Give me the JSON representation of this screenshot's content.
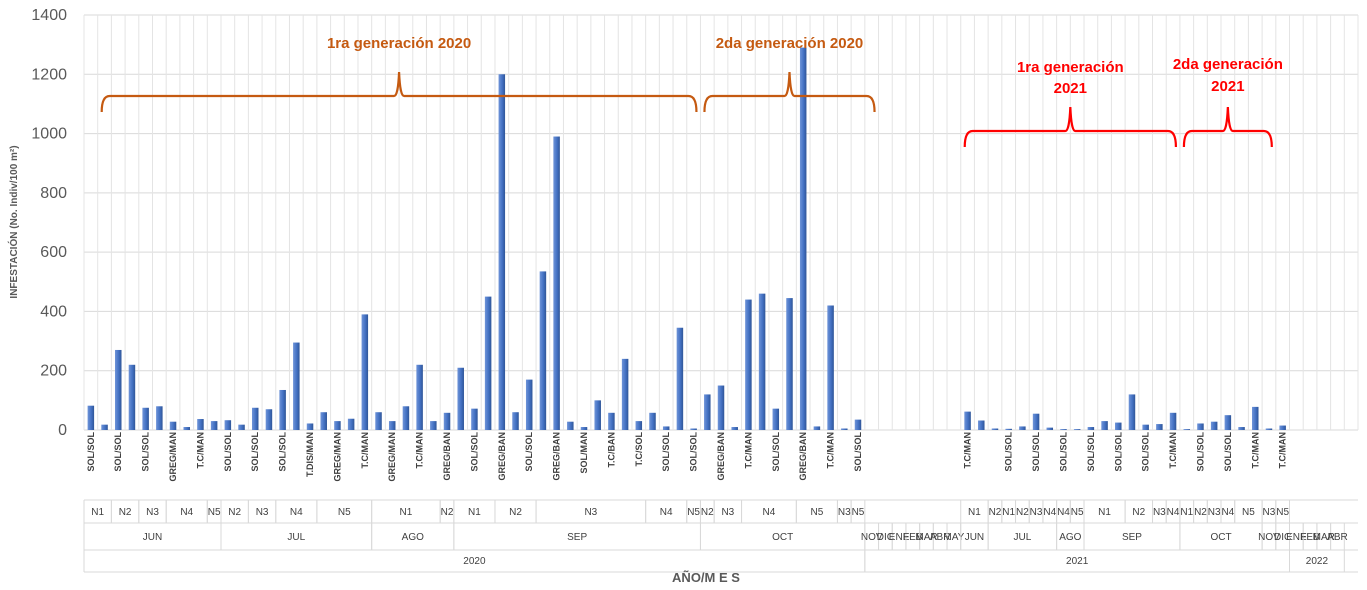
{
  "chart_data": {
    "type": "bar",
    "ylabel": "INFESTACIÓN (No. Indiv/100 m²)",
    "xlabel": "AÑO/M E S",
    "ylim": [
      0,
      1400
    ],
    "yticks": [
      0,
      200,
      400,
      600,
      800,
      1000,
      1200,
      1400
    ],
    "grid": true,
    "bar_color": "#4472c4",
    "values": [
      82,
      18,
      270,
      220,
      75,
      80,
      28,
      10,
      37,
      30,
      33,
      18,
      75,
      70,
      135,
      295,
      22,
      60,
      30,
      38,
      390,
      60,
      30,
      80,
      220,
      30,
      58,
      210,
      72,
      450,
      1200,
      60,
      170,
      535,
      990,
      28,
      10,
      100,
      58,
      240,
      30,
      58,
      12,
      345,
      5,
      120,
      150,
      10,
      440,
      460,
      72,
      445,
      1290,
      12,
      420,
      5,
      35,
      0,
      0,
      0,
      0,
      0,
      0,
      0,
      62,
      32,
      5,
      4,
      12,
      55,
      8,
      3,
      3,
      10,
      30,
      25,
      120,
      18,
      20,
      58,
      3,
      22,
      28,
      50,
      10,
      78,
      5,
      15,
      0,
      0,
      0,
      0,
      0
    ],
    "category_labels": [
      {
        "i": 0,
        "t": "SOL/SOL"
      },
      {
        "i": 2,
        "t": "SOL/SOL"
      },
      {
        "i": 4,
        "t": "SOL/SOL"
      },
      {
        "i": 6,
        "t": "GREG/MAN"
      },
      {
        "i": 8,
        "t": "T.C/MAN"
      },
      {
        "i": 10,
        "t": "SOL/SOL"
      },
      {
        "i": 12,
        "t": "SOL/SOL"
      },
      {
        "i": 14,
        "t": "SOL/SOL"
      },
      {
        "i": 16,
        "t": "T.DIS/MAN"
      },
      {
        "i": 18,
        "t": "GREG/MAN"
      },
      {
        "i": 20,
        "t": "T.C/MAN"
      },
      {
        "i": 22,
        "t": "GREG/MAN"
      },
      {
        "i": 24,
        "t": "T.C/MAN"
      },
      {
        "i": 26,
        "t": "GREG/BAN"
      },
      {
        "i": 28,
        "t": "SOL/SOL"
      },
      {
        "i": 30,
        "t": "GREG/BAN"
      },
      {
        "i": 32,
        "t": "SOL/SOL"
      },
      {
        "i": 34,
        "t": "GREG/BAN"
      },
      {
        "i": 36,
        "t": "SOL/MAN"
      },
      {
        "i": 38,
        "t": "T.C/BAN"
      },
      {
        "i": 40,
        "t": "T.C/SOL"
      },
      {
        "i": 42,
        "t": "SOL/SOL"
      },
      {
        "i": 44,
        "t": "SOL/SOL"
      },
      {
        "i": 46,
        "t": "GREG/BAN"
      },
      {
        "i": 48,
        "t": "T.C/MAN"
      },
      {
        "i": 50,
        "t": "SOL/SOL"
      },
      {
        "i": 52,
        "t": "GREG/BAN"
      },
      {
        "i": 54,
        "t": "T.C/MAN"
      },
      {
        "i": 56,
        "t": "SOL/SOL"
      },
      {
        "i": 64,
        "t": "T.C/MAN"
      },
      {
        "i": 67,
        "t": "SOL/SOL"
      },
      {
        "i": 69,
        "t": "SOL/SOL"
      },
      {
        "i": 71,
        "t": "SOL/SOL"
      },
      {
        "i": 73,
        "t": "SOL/SOL"
      },
      {
        "i": 75,
        "t": "SOL/SOL"
      },
      {
        "i": 77,
        "t": "SOL/SOL"
      },
      {
        "i": 79,
        "t": "T.C/MAN"
      },
      {
        "i": 81,
        "t": "SOL/SOL"
      },
      {
        "i": 83,
        "t": "SOL/SOL"
      },
      {
        "i": 85,
        "t": "T.C/MAN"
      },
      {
        "i": 87,
        "t": "T.C/MAN"
      }
    ],
    "n_labels": [
      {
        "s": 0,
        "e": 2,
        "t": "N1"
      },
      {
        "s": 2,
        "e": 4,
        "t": "N2"
      },
      {
        "s": 4,
        "e": 6,
        "t": "N3"
      },
      {
        "s": 6,
        "e": 9,
        "t": "N4"
      },
      {
        "s": 9,
        "e": 10,
        "t": "N5"
      },
      {
        "s": 10,
        "e": 12,
        "t": "N2"
      },
      {
        "s": 12,
        "e": 14,
        "t": "N3"
      },
      {
        "s": 14,
        "e": 17,
        "t": "N4"
      },
      {
        "s": 17,
        "e": 21,
        "t": "N5"
      },
      {
        "s": 21,
        "e": 26,
        "t": "N1"
      },
      {
        "s": 26,
        "e": 27,
        "t": "N2"
      },
      {
        "s": 27,
        "e": 30,
        "t": "N1"
      },
      {
        "s": 30,
        "e": 33,
        "t": "N2"
      },
      {
        "s": 33,
        "e": 41,
        "t": "N3"
      },
      {
        "s": 41,
        "e": 44,
        "t": "N4"
      },
      {
        "s": 44,
        "e": 45,
        "t": "N5"
      },
      {
        "s": 45,
        "e": 46,
        "t": "N2"
      },
      {
        "s": 46,
        "e": 48,
        "t": "N3"
      },
      {
        "s": 48,
        "e": 52,
        "t": "N4"
      },
      {
        "s": 52,
        "e": 55,
        "t": "N5"
      },
      {
        "s": 55,
        "e": 56,
        "t": "N3"
      },
      {
        "s": 56,
        "e": 57,
        "t": "N5"
      },
      {
        "s": 64,
        "e": 66,
        "t": "N1"
      },
      {
        "s": 66,
        "e": 67,
        "t": "N2"
      },
      {
        "s": 67,
        "e": 68,
        "t": "N1"
      },
      {
        "s": 68,
        "e": 69,
        "t": "N2"
      },
      {
        "s": 69,
        "e": 70,
        "t": "N3"
      },
      {
        "s": 70,
        "e": 71,
        "t": "N4"
      },
      {
        "s": 71,
        "e": 72,
        "t": "N4"
      },
      {
        "s": 72,
        "e": 73,
        "t": "N5"
      },
      {
        "s": 73,
        "e": 76,
        "t": "N1"
      },
      {
        "s": 76,
        "e": 78,
        "t": "N2"
      },
      {
        "s": 78,
        "e": 79,
        "t": "N3"
      },
      {
        "s": 79,
        "e": 80,
        "t": "N4"
      },
      {
        "s": 80,
        "e": 81,
        "t": "N1"
      },
      {
        "s": 81,
        "e": 82,
        "t": "N2"
      },
      {
        "s": 82,
        "e": 83,
        "t": "N3"
      },
      {
        "s": 83,
        "e": 84,
        "t": "N4"
      },
      {
        "s": 84,
        "e": 86,
        "t": "N5"
      },
      {
        "s": 86,
        "e": 87,
        "t": "N3"
      },
      {
        "s": 87,
        "e": 88,
        "t": "N5"
      }
    ],
    "month_labels": [
      {
        "s": 0,
        "e": 10,
        "t": "JUN"
      },
      {
        "s": 10,
        "e": 21,
        "t": "JUL"
      },
      {
        "s": 21,
        "e": 27,
        "t": "AGO"
      },
      {
        "s": 27,
        "e": 45,
        "t": "SEP"
      },
      {
        "s": 45,
        "e": 57,
        "t": "OCT"
      },
      {
        "s": 57,
        "e": 58,
        "t": "NOV"
      },
      {
        "s": 58,
        "e": 59,
        "t": "DIC"
      },
      {
        "s": 59,
        "e": 60,
        "t": "ENE"
      },
      {
        "s": 60,
        "e": 61,
        "t": "FEB"
      },
      {
        "s": 61,
        "e": 62,
        "t": "MAR"
      },
      {
        "s": 62,
        "e": 63,
        "t": "ABR"
      },
      {
        "s": 63,
        "e": 64,
        "t": "MAY"
      },
      {
        "s": 64,
        "e": 66,
        "t": "JUN"
      },
      {
        "s": 66,
        "e": 71,
        "t": "JUL"
      },
      {
        "s": 71,
        "e": 73,
        "t": "AGO"
      },
      {
        "s": 73,
        "e": 80,
        "t": "SEP"
      },
      {
        "s": 80,
        "e": 86,
        "t": "OCT"
      },
      {
        "s": 86,
        "e": 87,
        "t": "NOV"
      },
      {
        "s": 87,
        "e": 88,
        "t": "DIC"
      },
      {
        "s": 88,
        "e": 89,
        "t": "ENE"
      },
      {
        "s": 89,
        "e": 90,
        "t": "FEB"
      },
      {
        "s": 90,
        "e": 91,
        "t": "MAR"
      },
      {
        "s": 91,
        "e": 92,
        "t": "ABR"
      }
    ],
    "year_labels": [
      {
        "s": 0,
        "e": 57,
        "t": "2020"
      },
      {
        "s": 57,
        "e": 88,
        "t": "2021"
      },
      {
        "s": 88,
        "e": 92,
        "t": "2022"
      }
    ],
    "annotations": [
      {
        "text": "1ra generación 2020",
        "color": "#c55a11",
        "from": 1,
        "to": 45
      },
      {
        "text": "2da generación 2020",
        "color": "#c55a11",
        "from": 45,
        "to": 58
      },
      {
        "text": "1ra generación\n2021",
        "color": "#ff0000",
        "from": 64,
        "to": 80
      },
      {
        "text": "2da generación\n2021",
        "color": "#ff0000",
        "from": 80,
        "to": 87
      }
    ]
  }
}
